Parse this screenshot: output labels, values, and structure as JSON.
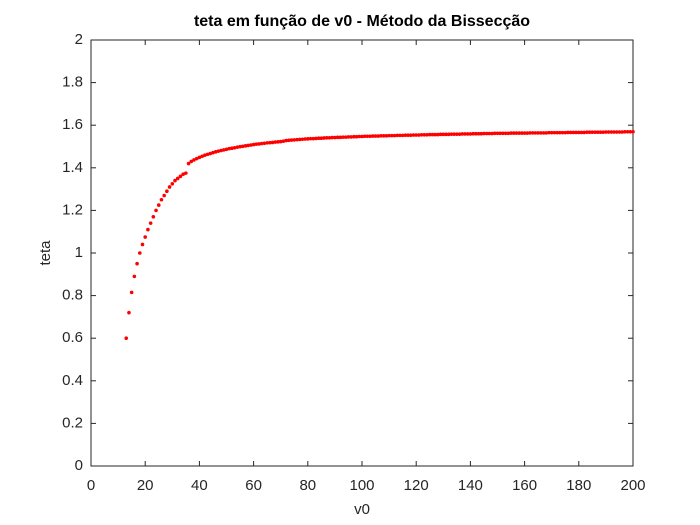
{
  "chart_data": {
    "type": "scatter",
    "title": "teta em função de v0 - Método da Bissecção",
    "x_label": "v0",
    "y_label": "teta",
    "xlim": [
      0,
      200
    ],
    "ylim": [
      0,
      2
    ],
    "xticks": [
      0,
      20,
      40,
      60,
      80,
      100,
      120,
      140,
      160,
      180,
      200
    ],
    "yticks": [
      0,
      0.2,
      0.4,
      0.6,
      0.8,
      1,
      1.2,
      1.4,
      1.6,
      1.8,
      2
    ],
    "color": "#ff0000",
    "x": [
      13,
      14,
      15,
      16,
      17,
      18,
      19,
      20,
      21,
      22,
      23,
      24,
      25,
      26,
      27,
      28,
      29,
      30,
      31,
      32,
      33,
      34,
      35,
      36,
      37,
      38,
      39,
      40,
      41,
      42,
      43,
      44,
      45,
      46,
      47,
      48,
      49,
      50,
      51,
      52,
      53,
      54,
      55,
      56,
      57,
      58,
      59,
      60,
      61,
      62,
      63,
      64,
      65,
      66,
      67,
      68,
      69,
      70,
      71,
      72,
      73,
      74,
      75,
      76,
      77,
      78,
      79,
      80,
      81,
      82,
      83,
      84,
      85,
      86,
      87,
      88,
      89,
      90,
      91,
      92,
      93,
      94,
      95,
      96,
      97,
      98,
      99,
      100,
      101,
      102,
      103,
      104,
      105,
      106,
      107,
      108,
      109,
      110,
      111,
      112,
      113,
      114,
      115,
      116,
      117,
      118,
      119,
      120,
      121,
      122,
      123,
      124,
      125,
      126,
      127,
      128,
      129,
      130,
      131,
      132,
      133,
      134,
      135,
      136,
      137,
      138,
      139,
      140,
      141,
      142,
      143,
      144,
      145,
      146,
      147,
      148,
      149,
      150,
      151,
      152,
      153,
      154,
      155,
      156,
      157,
      158,
      159,
      160,
      161,
      162,
      163,
      164,
      165,
      166,
      167,
      168,
      169,
      170,
      171,
      172,
      173,
      174,
      175,
      176,
      177,
      178,
      179,
      180,
      181,
      182,
      183,
      184,
      185,
      186,
      187,
      188,
      189,
      190,
      191,
      192,
      193,
      194,
      195,
      196,
      197,
      198,
      199,
      200
    ],
    "values": [
      0.6,
      0.72,
      0.815,
      0.89,
      0.95,
      1.0,
      1.04,
      1.075,
      1.11,
      1.14,
      1.17,
      1.2,
      1.225,
      1.25,
      1.27,
      1.29,
      1.31,
      1.325,
      1.34,
      1.35,
      1.36,
      1.37,
      1.375,
      1.42,
      1.43,
      1.437,
      1.443,
      1.449,
      1.454,
      1.459,
      1.463,
      1.467,
      1.471,
      1.475,
      1.478,
      1.481,
      1.484,
      1.487,
      1.49,
      1.492,
      1.494,
      1.497,
      1.499,
      1.501,
      1.503,
      1.505,
      1.507,
      1.509,
      1.511,
      1.512,
      1.514,
      1.515,
      1.517,
      1.518,
      1.519,
      1.521,
      1.522,
      1.523,
      1.525,
      1.528,
      1.529,
      1.53,
      1.531,
      1.532,
      1.533,
      1.534,
      1.535,
      1.536,
      1.537,
      1.537,
      1.538,
      1.539,
      1.539,
      1.54,
      1.541,
      1.541,
      1.542,
      1.542,
      1.543,
      1.543,
      1.544,
      1.544,
      1.545,
      1.545,
      1.546,
      1.546,
      1.547,
      1.547,
      1.548,
      1.548,
      1.548,
      1.549,
      1.549,
      1.549,
      1.55,
      1.55,
      1.55,
      1.551,
      1.551,
      1.551,
      1.552,
      1.552,
      1.552,
      1.553,
      1.553,
      1.553,
      1.554,
      1.554,
      1.554,
      1.555,
      1.555,
      1.555,
      1.556,
      1.556,
      1.556,
      1.556,
      1.557,
      1.557,
      1.557,
      1.557,
      1.558,
      1.558,
      1.558,
      1.558,
      1.559,
      1.559,
      1.559,
      1.559,
      1.56,
      1.56,
      1.56,
      1.56,
      1.561,
      1.561,
      1.561,
      1.561,
      1.562,
      1.562,
      1.562,
      1.562,
      1.562,
      1.562,
      1.563,
      1.563,
      1.563,
      1.563,
      1.563,
      1.563,
      1.563,
      1.564,
      1.564,
      1.564,
      1.564,
      1.564,
      1.564,
      1.564,
      1.565,
      1.565,
      1.565,
      1.565,
      1.565,
      1.565,
      1.565,
      1.566,
      1.566,
      1.566,
      1.566,
      1.566,
      1.566,
      1.566,
      1.567,
      1.567,
      1.567,
      1.567,
      1.567,
      1.567,
      1.567,
      1.568,
      1.568,
      1.568,
      1.568,
      1.568,
      1.568,
      1.568,
      1.569,
      1.569,
      1.569,
      1.569
    ]
  }
}
